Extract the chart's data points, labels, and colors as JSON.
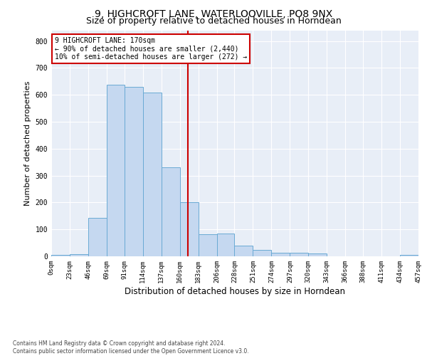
{
  "title": "9, HIGHCROFT LANE, WATERLOOVILLE, PO8 9NX",
  "subtitle": "Size of property relative to detached houses in Horndean",
  "xlabel": "Distribution of detached houses by size in Horndean",
  "ylabel": "Number of detached properties",
  "bin_edges": [
    0,
    23,
    46,
    69,
    91,
    114,
    137,
    160,
    183,
    206,
    228,
    251,
    274,
    297,
    320,
    343,
    366,
    388,
    411,
    434,
    457
  ],
  "bar_heights": [
    5,
    8,
    143,
    637,
    630,
    609,
    330,
    200,
    83,
    85,
    40,
    25,
    12,
    12,
    10,
    0,
    0,
    0,
    0,
    5
  ],
  "bar_color": "#c5d8f0",
  "bar_edge_color": "#6aaad4",
  "property_size": 170,
  "vline_color": "#cc0000",
  "annotation_line1": "9 HIGHCROFT LANE: 170sqm",
  "annotation_line2": "← 90% of detached houses are smaller (2,440)",
  "annotation_line3": "10% of semi-detached houses are larger (272) →",
  "annotation_box_color": "#cc0000",
  "annotation_bg": "#ffffff",
  "ylim": [
    0,
    840
  ],
  "yticks": [
    0,
    100,
    200,
    300,
    400,
    500,
    600,
    700,
    800
  ],
  "plot_bg_color": "#e8eef7",
  "grid_color": "#ffffff",
  "title_fontsize": 10,
  "subtitle_fontsize": 9,
  "axis_label_fontsize": 8,
  "tick_fontsize": 6.5,
  "footnote": "Contains HM Land Registry data © Crown copyright and database right 2024.\nContains public sector information licensed under the Open Government Licence v3.0."
}
